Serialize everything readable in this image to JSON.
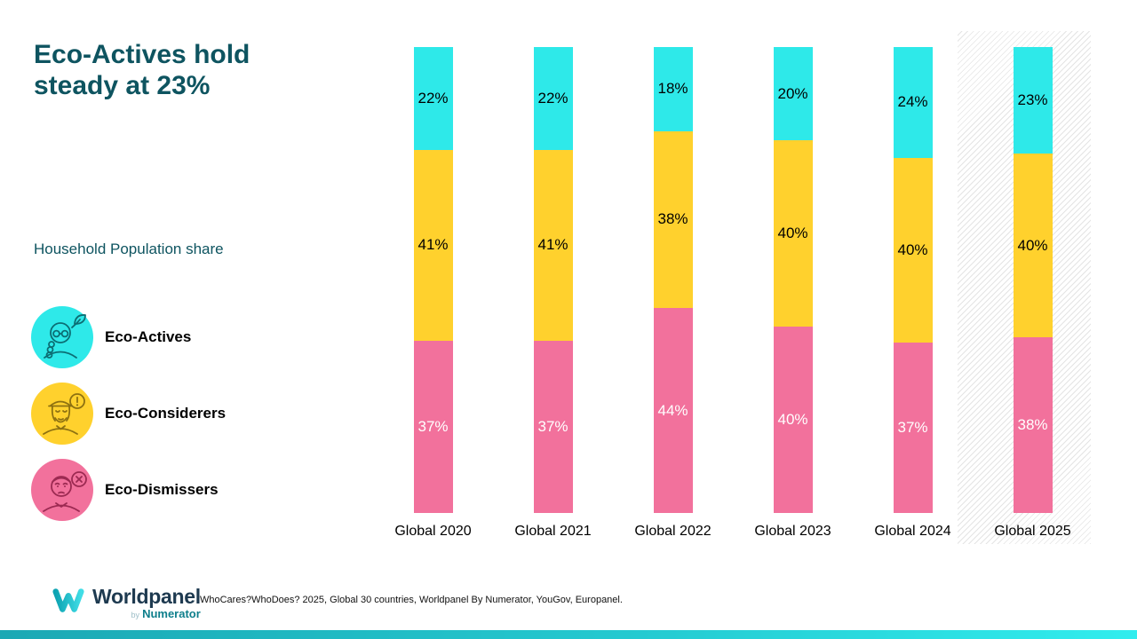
{
  "page": {
    "title": "Eco-Actives hold steady at 23%",
    "subtitle": "Household Population share",
    "accent_teal": "#0e5460"
  },
  "legend": {
    "items": [
      {
        "label": "Eco-Actives",
        "color": "#2ee9e9",
        "icon": "eco-actives-person-leaf-icon"
      },
      {
        "label": "Eco-Considerers",
        "color": "#ffd12d",
        "icon": "eco-considerers-person-alert-icon"
      },
      {
        "label": "Eco-Dismissers",
        "color": "#f2719c",
        "icon": "eco-dismissers-person-x-icon"
      }
    ]
  },
  "chart_data": {
    "type": "bar",
    "stacked": true,
    "categories": [
      "Global 2020",
      "Global 2021",
      "Global 2022",
      "Global 2023",
      "Global 2024",
      "Global 2025"
    ],
    "series": [
      {
        "name": "Eco-Actives",
        "color": "#2ee9e9",
        "label_color": "#000000",
        "values": [
          22,
          22,
          18,
          20,
          24,
          23
        ]
      },
      {
        "name": "Eco-Considerers",
        "color": "#ffd12d",
        "label_color": "#000000",
        "values": [
          41,
          41,
          38,
          40,
          40,
          40
        ]
      },
      {
        "name": "Eco-Dismissers",
        "color": "#f2719c",
        "label_color": "#ffffff",
        "values": [
          37,
          37,
          44,
          40,
          37,
          38
        ]
      }
    ],
    "stack_order": "top-to-bottom",
    "value_suffix": "%",
    "ylim": [
      0,
      100
    ],
    "grid": false,
    "legend_position": "left",
    "highlighted_category": "Global 2025",
    "highlight_style": "diagonal-hatch"
  },
  "footer": {
    "source": "WhoCares?WhoDoes? 2025, Global 30 countries, Worldpanel By Numerator, YouGov, Europanel.",
    "logo_brand": "Worldpanel",
    "logo_by": "by",
    "logo_sub_brand": "Numerator"
  }
}
